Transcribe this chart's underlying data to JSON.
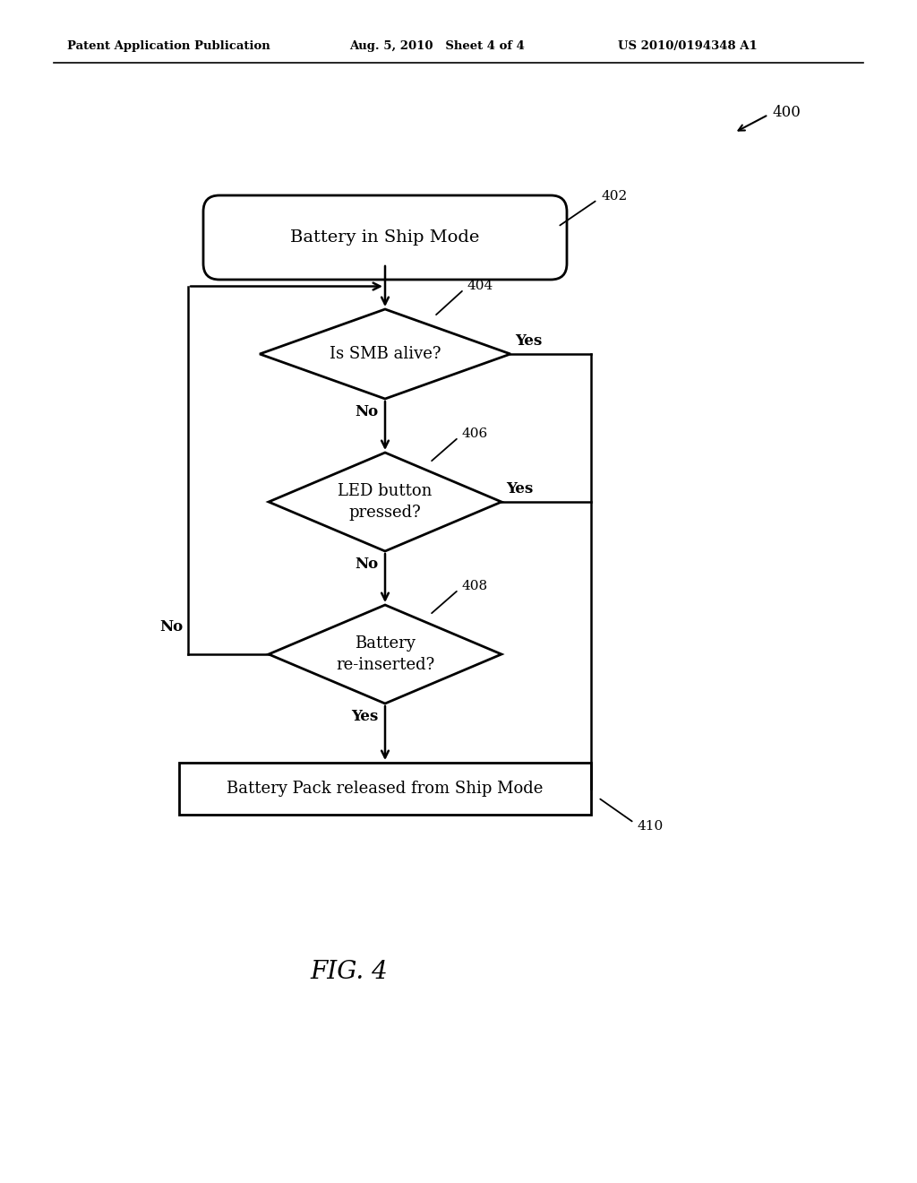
{
  "header_left": "Patent Application Publication",
  "header_center": "Aug. 5, 2010   Sheet 4 of 4",
  "header_right": "US 2010/0194348 A1",
  "fig_label": "FIG. 4",
  "diagram_number": "400",
  "bg_color": "#ffffff",
  "node_402_label": "Battery in Ship Mode",
  "node_402_number": "402",
  "node_404_label": "Is SMB alive?",
  "node_404_number": "404",
  "node_406_line1": "LED button",
  "node_406_line2": "pressed?",
  "node_406_number": "406",
  "node_408_line1": "Battery",
  "node_408_line2": "re-inserted?",
  "node_408_number": "408",
  "node_410_label": "Battery Pack released from Ship Mode",
  "node_410_number": "410",
  "line_color": "#000000",
  "text_color": "#000000",
  "font_family": "DejaVu Serif"
}
